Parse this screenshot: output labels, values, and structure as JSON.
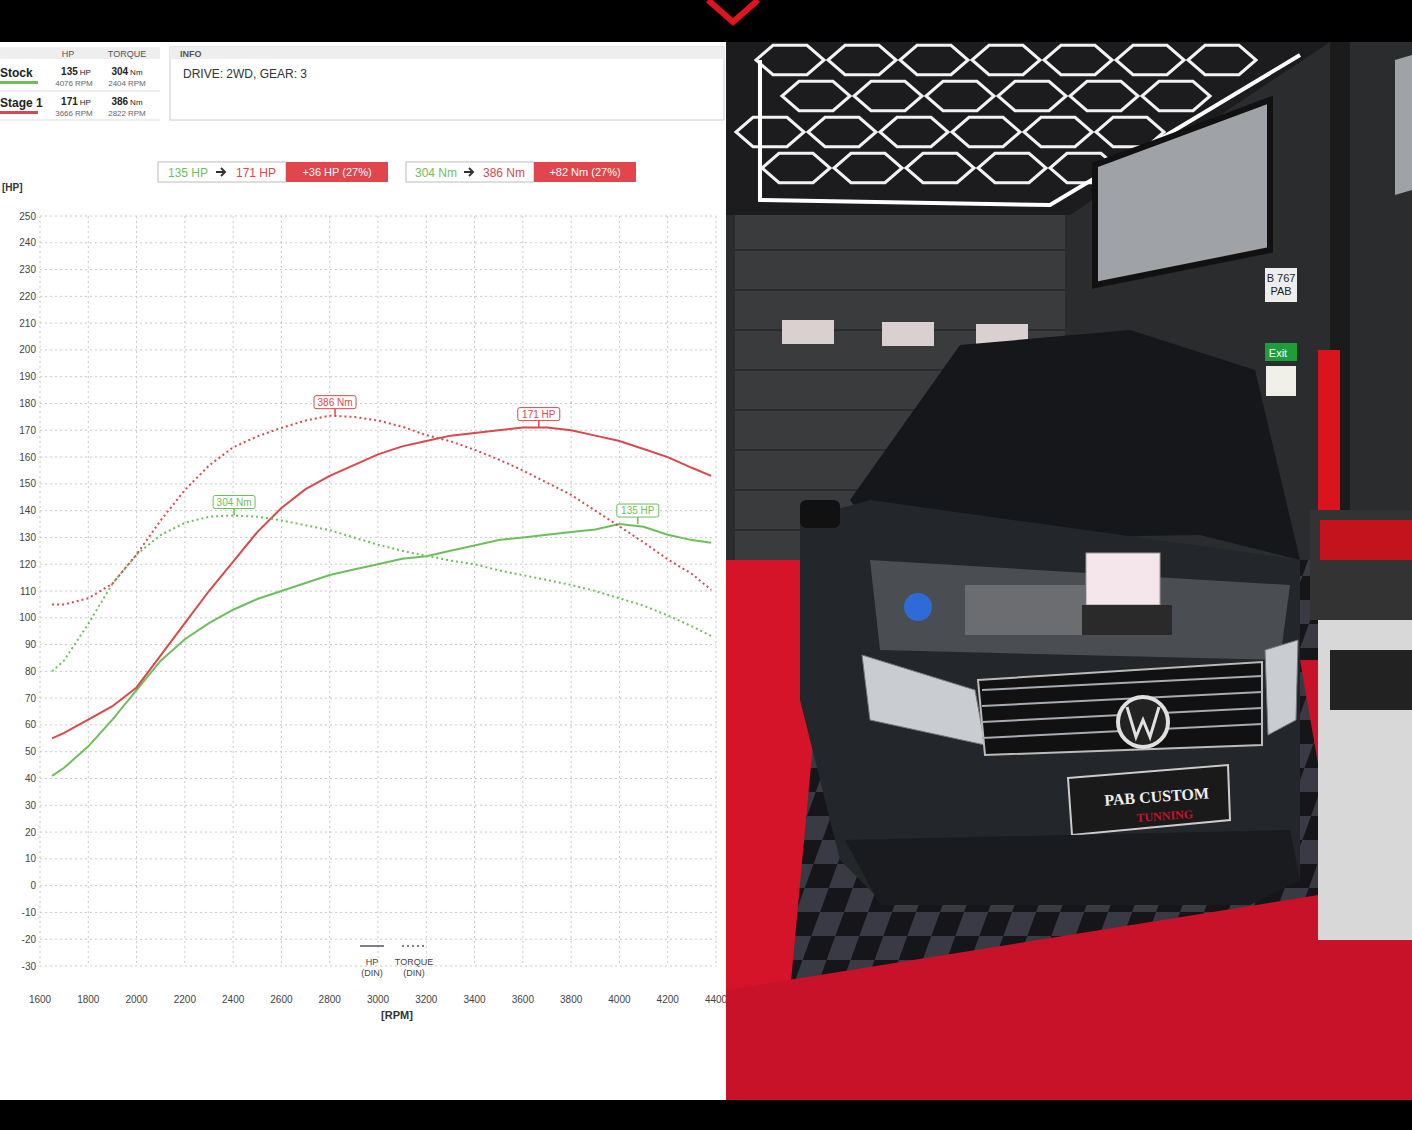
{
  "chart_data": {
    "type": "line",
    "y_label": "[HP]",
    "x_label": "[RPM]",
    "xlim": [
      1600,
      4400
    ],
    "xticks": [
      1600,
      1800,
      2000,
      2200,
      2400,
      2600,
      2800,
      3000,
      3200,
      3400,
      3600,
      3800,
      4000,
      4200,
      4400
    ],
    "ylim": [
      -30,
      250
    ],
    "yticks": [
      -30,
      -20,
      -10,
      0,
      10,
      20,
      30,
      40,
      50,
      60,
      70,
      80,
      90,
      100,
      110,
      120,
      130,
      140,
      150,
      160,
      170,
      180,
      190,
      200,
      210,
      220,
      230,
      240,
      250
    ],
    "y2lim": [
      -66,
      550
    ],
    "y2ticks": [],
    "grid": true,
    "x": [
      1650,
      1700,
      1800,
      1900,
      2000,
      2100,
      2200,
      2300,
      2400,
      2500,
      2600,
      2700,
      2800,
      2900,
      3000,
      3100,
      3200,
      3300,
      3400,
      3500,
      3600,
      3700,
      3800,
      3900,
      4000,
      4100,
      4200,
      4300,
      4380
    ],
    "series": [
      {
        "name": "Stock",
        "color": "#6cbf5a",
        "line_style": "solid",
        "values": [
          41,
          44,
          52,
          62,
          73,
          84,
          92,
          98,
          103,
          107,
          110,
          113,
          116,
          118,
          120,
          122,
          123,
          125,
          127,
          129,
          130,
          131,
          132,
          133,
          135,
          134,
          131,
          129,
          128
        ]
      },
      {
        "name": "Stage 1",
        "color": "#d9484c",
        "line_style": "solid",
        "values": [
          55,
          57,
          62,
          67,
          74,
          86,
          98,
          110,
          121,
          132,
          141,
          148,
          153,
          157,
          161,
          164,
          166,
          168,
          169,
          170,
          171,
          171,
          170,
          168,
          166,
          163,
          160,
          156,
          153
        ]
      },
      {
        "name": "Stock",
        "color": "#6cbf5a",
        "line_style": "dotted",
        "axis": "y2",
        "values": [
          176,
          185,
          215,
          248,
          272,
          288,
          298,
          303,
          304,
          303,
          300,
          296,
          292,
          286,
          280,
          275,
          271,
          267,
          264,
          259,
          255,
          251,
          247,
          242,
          236,
          230,
          222,
          213,
          205
        ]
      },
      {
        "name": "Stage 1",
        "color": "#d9484c",
        "line_style": "dotted",
        "axis": "y2",
        "values": [
          231,
          231,
          236,
          248,
          272,
          300,
          325,
          345,
          360,
          369,
          376,
          382,
          386,
          385,
          382,
          377,
          370,
          365,
          358,
          350,
          341,
          331,
          321,
          308,
          295,
          282,
          268,
          256,
          243
        ]
      }
    ],
    "annotations": [
      {
        "text": "386 Nm",
        "x": 2822,
        "y": 386,
        "axis": "y2",
        "color": "#d9484c"
      },
      {
        "text": "171 HP",
        "x": 3666,
        "y": 171,
        "color": "#d9484c"
      },
      {
        "text": "304 Nm",
        "x": 2404,
        "y": 304,
        "axis": "y2",
        "color": "#6cbf5a"
      },
      {
        "text": "135 HP",
        "x": 4076,
        "y": 135,
        "color": "#6cbf5a"
      }
    ],
    "summary_header": {
      "hp": "HP",
      "torque": "TORQUE"
    },
    "units": {
      "hp": "HP",
      "torque": "Nm",
      "rpm": "RPM"
    },
    "summary": [
      {
        "name": "Stock",
        "color": "#6cbf5a",
        "hp": 135,
        "hp_rpm": 4076,
        "torque": 304,
        "torque_rpm": 2404
      },
      {
        "name": "Stage 1",
        "color": "#d9484c",
        "hp": 171,
        "hp_rpm": 3666,
        "torque": 386,
        "torque_rpm": 2822
      }
    ],
    "info": {
      "title": "INFO",
      "text": "DRIVE: 2WD,  GEAR: 3"
    },
    "badges": [
      {
        "from": "135 HP",
        "to": "171 HP",
        "delta": "+36 HP (27%)"
      },
      {
        "from": "304 Nm",
        "to": "386 Nm",
        "delta": "+82 Nm (27%)"
      }
    ],
    "line_legend": [
      {
        "label": "HP",
        "sub": "(DIN)",
        "line_style": "solid"
      },
      {
        "label": "TORQUE",
        "sub": "(DIN)",
        "line_style": "dotted"
      }
    ]
  },
  "photo": {
    "wall_sign": [
      "B 767",
      "PAB"
    ],
    "exit_sign": "Exit",
    "plate": [
      "PAB CUSTOM",
      "TUNNING"
    ]
  }
}
